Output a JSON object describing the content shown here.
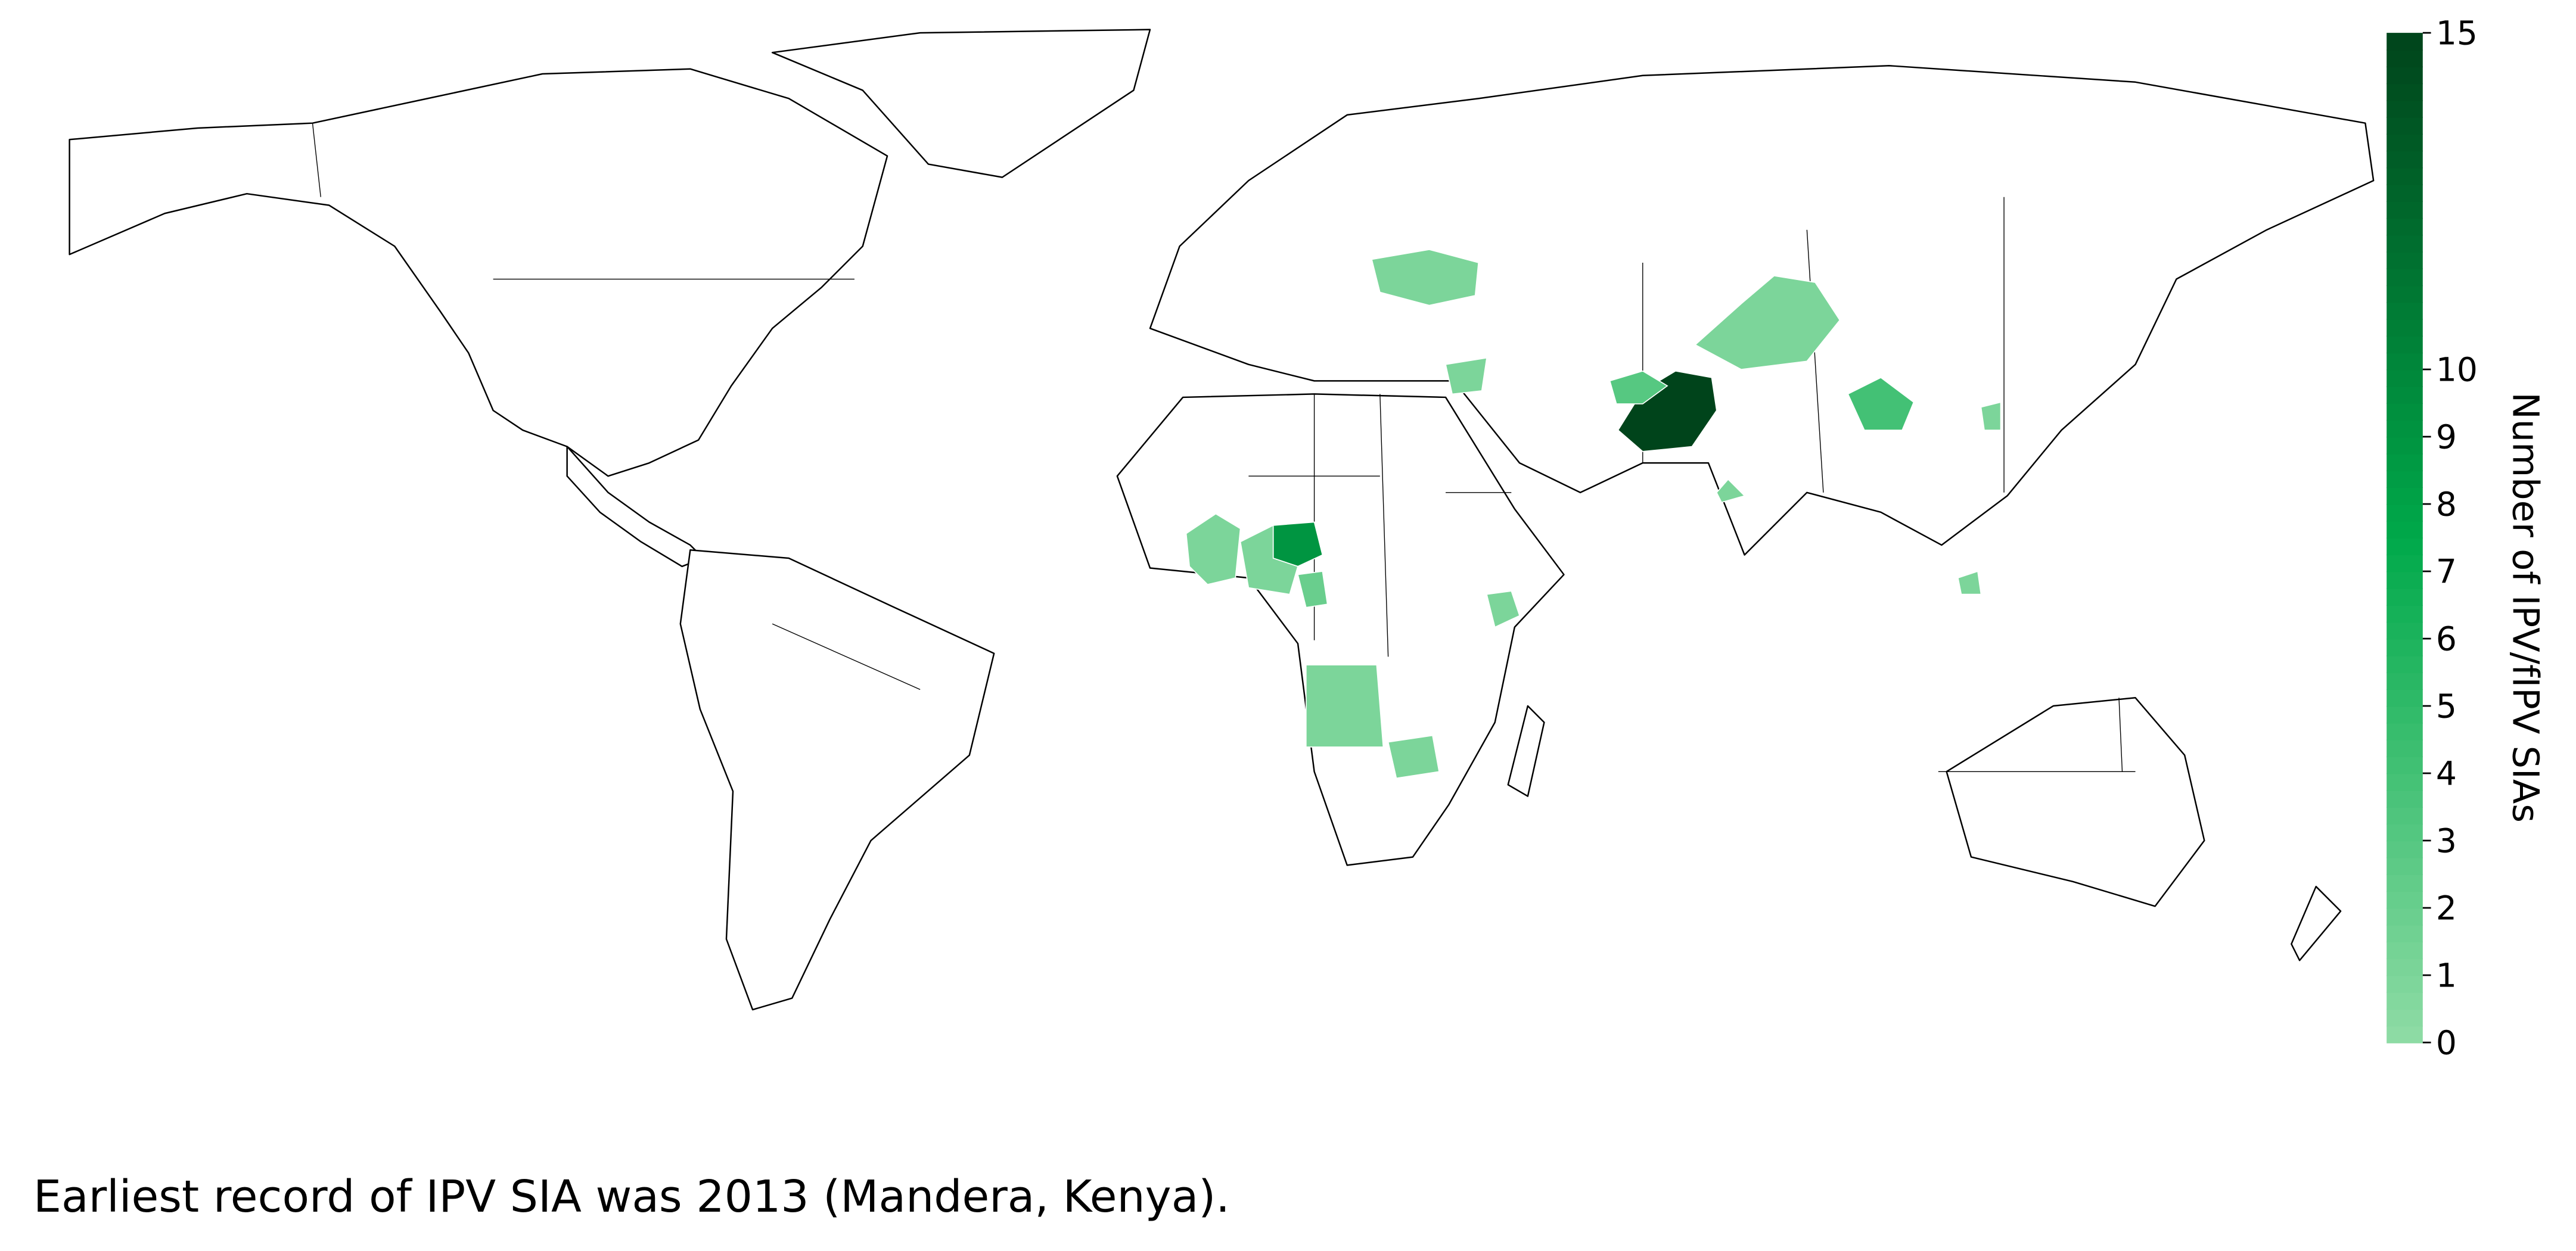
{
  "map": {
    "colorbar": {
      "title": "Number of IPV/fIPV SIAs",
      "lim": [
        0,
        15
      ],
      "ticks": [
        0,
        1,
        2,
        3,
        4,
        5,
        6,
        7,
        8,
        9,
        10,
        15
      ],
      "colors": [
        "#8fdca6",
        "#00a94a",
        "#00441b"
      ]
    },
    "region_values": [
      1,
      1,
      1,
      15,
      3,
      4,
      1,
      1,
      9,
      1,
      1,
      2,
      1,
      1,
      1,
      1
    ]
  },
  "caption": "Earliest record of IPV SIA was 2013 (Mandera, Kenya)."
}
